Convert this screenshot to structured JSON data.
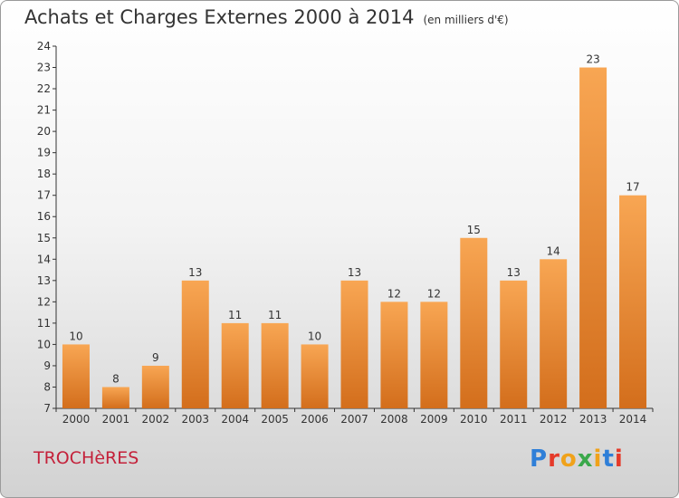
{
  "title": "Achats et Charges Externes 2000 à 2014",
  "subtitle": "(en milliers d'€)",
  "place": "TROCHèRES",
  "logo": {
    "text": "Proxiti",
    "colors": [
      "#2f7fd8",
      "#e53a2a",
      "#f0a21a",
      "#3aa84a",
      "#f0a21a",
      "#2f7fd8",
      "#e53a2a"
    ]
  },
  "colors": {
    "bar_light": "#f8a653",
    "bar_dark": "#d36e1c",
    "axis": "#333333",
    "grid": "#bfbfbf"
  },
  "chart_data": {
    "type": "bar",
    "title": "Achats et Charges Externes 2000 à 2014",
    "subtitle": "(en milliers d'€)",
    "categories": [
      "2000",
      "2001",
      "2002",
      "2003",
      "2004",
      "2005",
      "2006",
      "2007",
      "2008",
      "2009",
      "2010",
      "2011",
      "2012",
      "2013",
      "2014"
    ],
    "values": [
      10,
      8,
      9,
      13,
      11,
      11,
      10,
      13,
      12,
      12,
      15,
      13,
      14,
      23,
      17
    ],
    "ylim": [
      7,
      24
    ],
    "yticks": [
      7,
      8,
      9,
      10,
      11,
      12,
      13,
      14,
      15,
      16,
      17,
      18,
      19,
      20,
      21,
      22,
      23,
      24
    ],
    "grid": false,
    "data_labels": true
  }
}
